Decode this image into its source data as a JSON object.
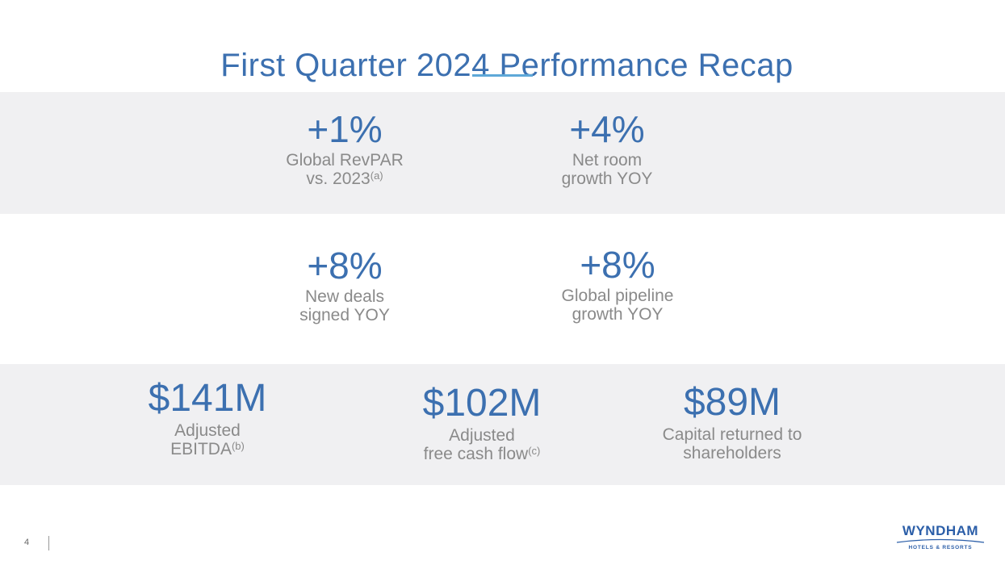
{
  "slide": {
    "title": "First Quarter 2024 Performance Recap",
    "page_number": "4"
  },
  "metrics": {
    "revpar": {
      "value": "+1%",
      "label_line1": "Global RevPAR",
      "label_line2": "vs. 2023",
      "footnote": "(a)"
    },
    "net_room": {
      "value": "+4%",
      "label_line1": "Net room",
      "label_line2": "growth YOY"
    },
    "new_deals": {
      "value": "+8%",
      "label_line1": "New deals",
      "label_line2": "signed YOY"
    },
    "pipeline": {
      "value": "+8%",
      "label_line1": "Global pipeline",
      "label_line2": "growth YOY"
    },
    "ebitda": {
      "value": "$141M",
      "label_line1": "Adjusted",
      "label_line2": "EBITDA",
      "footnote": "(b)"
    },
    "fcf": {
      "value": "$102M",
      "label_line1": "Adjusted",
      "label_line2": "free cash flow",
      "footnote": "(c)"
    },
    "capital": {
      "value": "$89M",
      "label_line1": "Capital returned to",
      "label_line2": "shareholders"
    }
  },
  "logo": {
    "name": "WYNDHAM",
    "tagline": "HOTELS & RESORTS"
  },
  "colors": {
    "accent_blue": "#3c70b0",
    "rule_blue": "#5ea8d8",
    "label_gray": "#8a8a8a",
    "band_gray": "#f0f0f2"
  }
}
